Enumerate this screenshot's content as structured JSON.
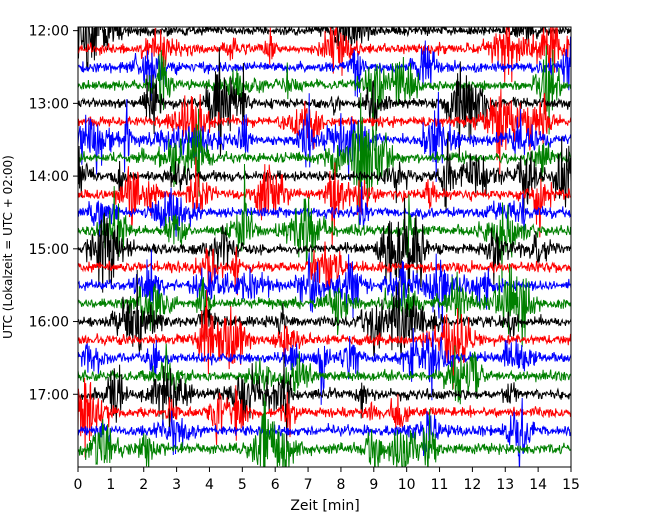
{
  "chart_data": {
    "type": "line",
    "title": "",
    "xlabel": "Zeit  [min]",
    "ylabel": "UTC (Lokalzeit = UTC + 02:00)",
    "xlim": [
      0,
      15
    ],
    "x_ticks": [
      "0",
      "1",
      "2",
      "3",
      "4",
      "5",
      "6",
      "7",
      "8",
      "9",
      "10",
      "11",
      "12",
      "13",
      "14",
      "15"
    ],
    "y_ticks": [
      {
        "label": "12:00",
        "minutes": 720
      },
      {
        "label": "13:00",
        "minutes": 780
      },
      {
        "label": "14:00",
        "minutes": 840
      },
      {
        "label": "15:00",
        "minutes": 900
      },
      {
        "label": "16:00",
        "minutes": 960
      },
      {
        "label": "17:00",
        "minutes": 1020
      }
    ],
    "ylim_minutes": [
      1080,
      717
    ],
    "grid": false,
    "legend": "none",
    "trace_cycle_colors": [
      "#000000",
      "#ff0000",
      "#0000ff",
      "#008000"
    ],
    "trace_interval_minutes": 15,
    "trace_count": 24,
    "trace_start_minutes": 720
  }
}
